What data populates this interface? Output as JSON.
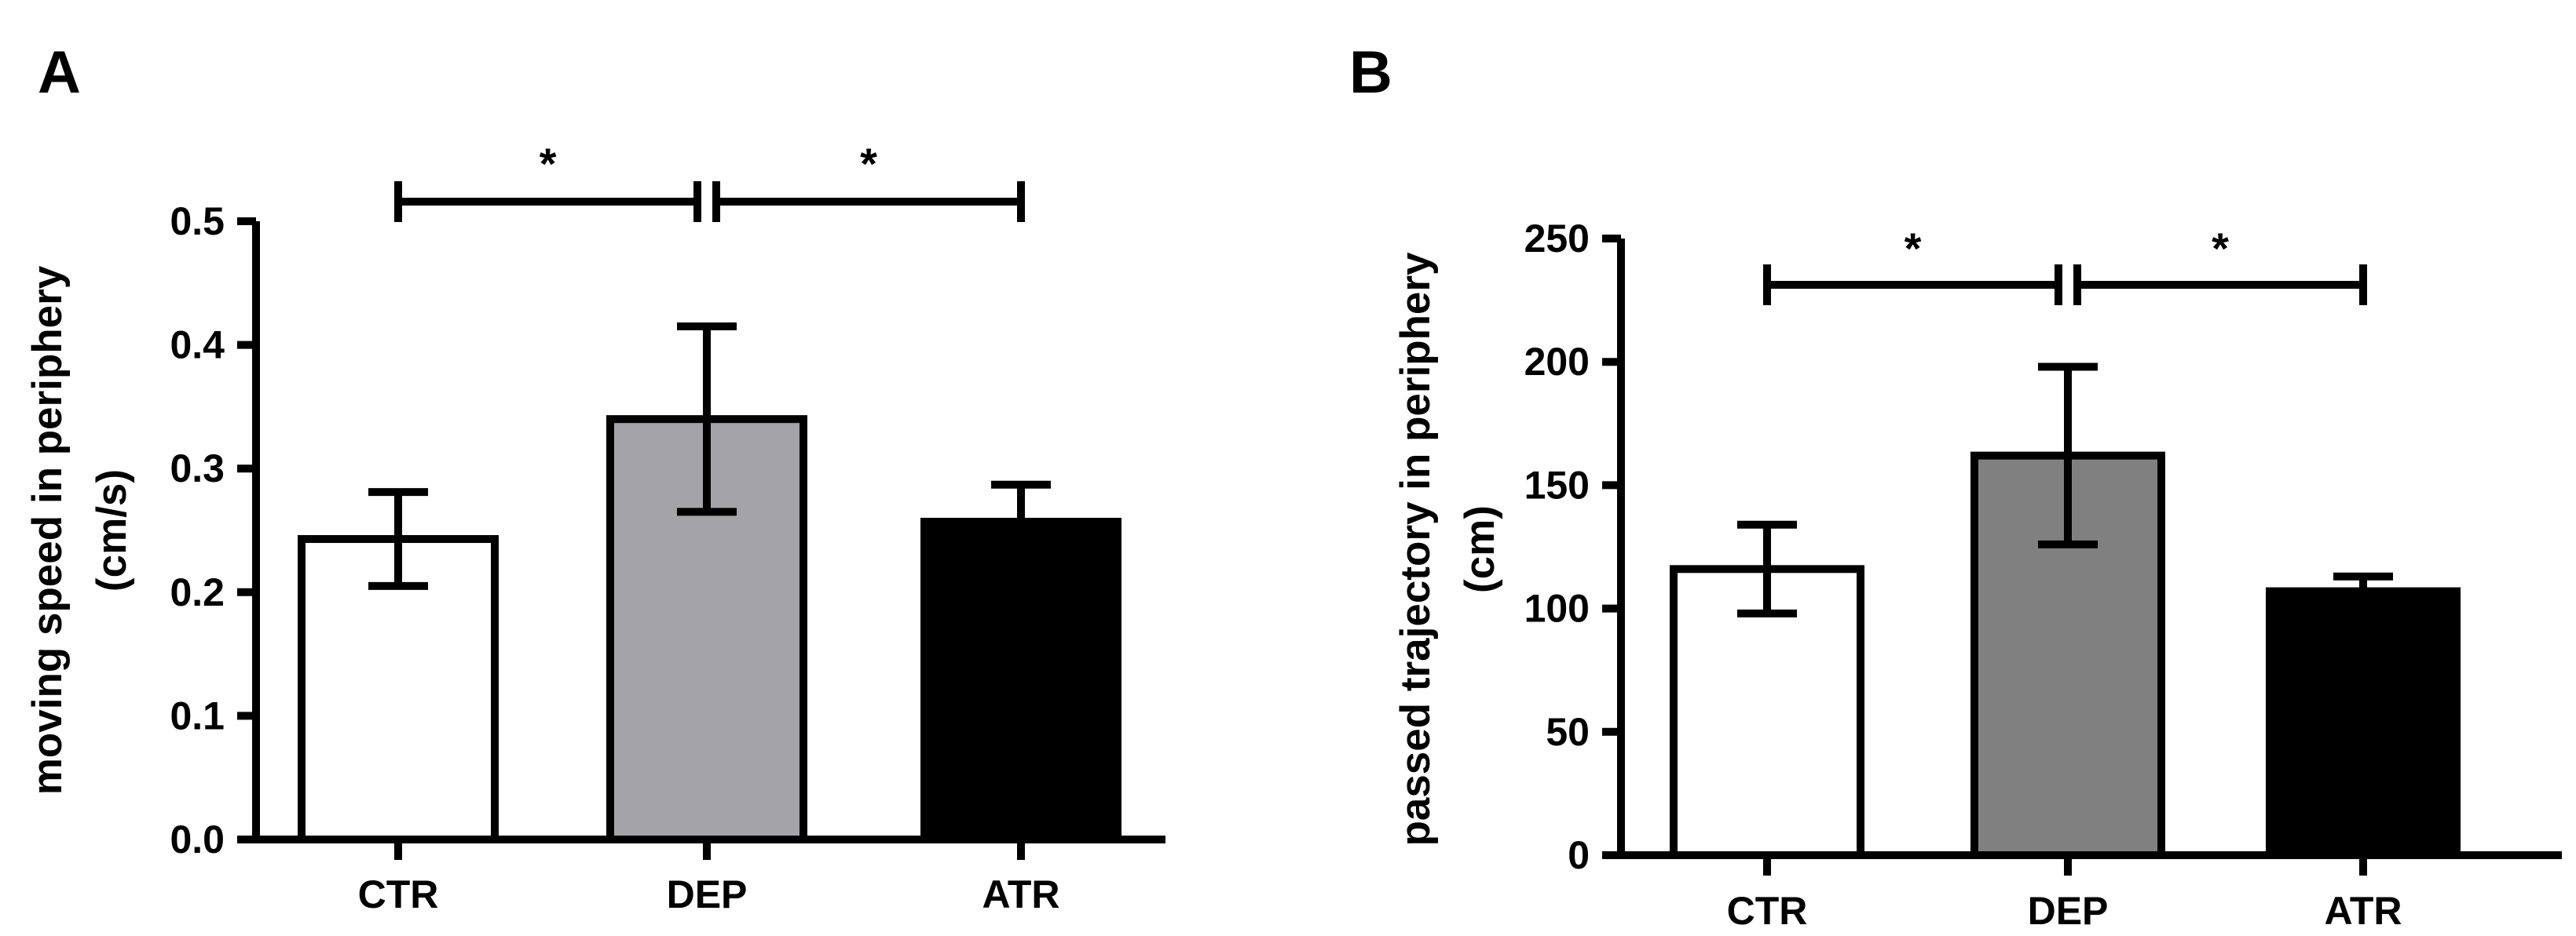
{
  "chart_data": [
    {
      "type": "bar",
      "panel_label": "A",
      "categories": [
        "CTR",
        "DEP",
        "ATR"
      ],
      "values": [
        0.243,
        0.34,
        0.257
      ],
      "error": [
        0.038,
        0.075,
        0.03
      ],
      "bar_colors": [
        "#ffffff",
        "#a3a3a8",
        "#000000"
      ],
      "ylabel_lines": [
        "moving speed in periphery",
        "(cm/s)"
      ],
      "ylim": [
        0,
        0.5
      ],
      "yticks": [
        0,
        0.1,
        0.2,
        0.3,
        0.4,
        0.5
      ],
      "ytick_labels": [
        "0.0",
        "0.1",
        "0.2",
        "0.3",
        "0.4",
        "0.5"
      ],
      "significance": [
        {
          "from": "CTR",
          "to": "DEP",
          "label": "*"
        },
        {
          "from": "DEP",
          "to": "ATR",
          "label": "*"
        }
      ]
    },
    {
      "type": "bar",
      "panel_label": "B",
      "categories": [
        "CTR",
        "DEP",
        "ATR"
      ],
      "values": [
        116,
        162,
        107
      ],
      "error": [
        18,
        36,
        6
      ],
      "bar_colors": [
        "#ffffff",
        "#808080",
        "#000000"
      ],
      "ylabel_lines": [
        "passed trajectory in periphery",
        "(cm)"
      ],
      "ylim": [
        0,
        250
      ],
      "yticks": [
        0,
        50,
        100,
        150,
        200,
        250
      ],
      "ytick_labels": [
        "0",
        "50",
        "100",
        "150",
        "200",
        "250"
      ],
      "significance": [
        {
          "from": "CTR",
          "to": "DEP",
          "label": "*"
        },
        {
          "from": "DEP",
          "to": "ATR",
          "label": "*"
        }
      ]
    }
  ]
}
